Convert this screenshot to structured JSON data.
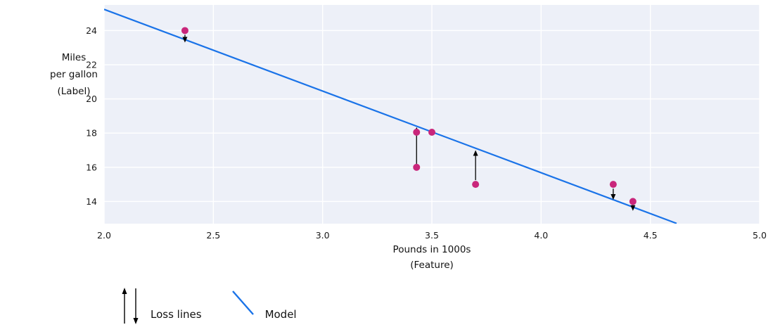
{
  "chart_data": {
    "type": "scatter",
    "title": "",
    "xlabel": "Pounds in 1000s\n(Feature)",
    "ylabel": "Miles\nper gallon\n(Label)",
    "xlim": [
      2.0,
      5.0
    ],
    "ylim": [
      12.7,
      25.5
    ],
    "xticks": [
      "2.0",
      "2.5",
      "3.0",
      "3.5",
      "4.0",
      "4.5",
      "5.0"
    ],
    "yticks": [
      14,
      16,
      18,
      20,
      22,
      24
    ],
    "grid": true,
    "legend_position": "bottom-left",
    "plot_bg": "#edf0f8",
    "grid_color": "#ffffff",
    "points": {
      "color": "#c9267b",
      "data": [
        {
          "x": 2.37,
          "y": 24.0
        },
        {
          "x": 3.43,
          "y": 18.05
        },
        {
          "x": 3.5,
          "y": 18.05
        },
        {
          "x": 3.43,
          "y": 16.0
        },
        {
          "x": 3.7,
          "y": 15.0
        },
        {
          "x": 4.33,
          "y": 15.0
        },
        {
          "x": 4.42,
          "y": 14.0
        }
      ]
    },
    "model_line": {
      "color": "#1a73e8",
      "slope": -4.78,
      "intercept": 34.8,
      "x_start": 2.0,
      "x_end": 4.62
    },
    "loss_lines": {
      "color": "#000000",
      "data": [
        {
          "x": 2.37,
          "y_from": 23.75,
          "y_to": 23.3,
          "direction": "down"
        },
        {
          "x": 3.43,
          "y_from": 16.2,
          "y_to": 18.35,
          "direction": "up"
        },
        {
          "x": 3.7,
          "y_from": 15.25,
          "y_to": 17.0,
          "direction": "up"
        },
        {
          "x": 4.33,
          "y_from": 14.75,
          "y_to": 14.1,
          "direction": "down"
        },
        {
          "x": 4.42,
          "y_from": 13.85,
          "y_to": 13.45,
          "direction": "down"
        }
      ]
    },
    "legend": [
      {
        "icon": "loss-arrows-icon",
        "label": "Loss lines"
      },
      {
        "icon": "model-line-icon",
        "label": "Model"
      }
    ]
  }
}
